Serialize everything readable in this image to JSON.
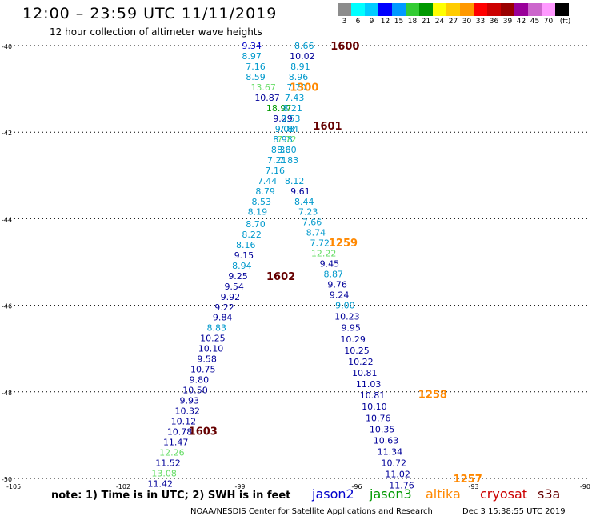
{
  "title": "12:00 – 23:59 UTC 11/11/2019",
  "subtitle": "12 hour collection of altimeter wave heights",
  "legend": {
    "colors": [
      "#8c8c8c",
      "#00ffff",
      "#00ccff",
      "#0000ff",
      "#0099ff",
      "#33cc33",
      "#009900",
      "#ffff00",
      "#ffcc00",
      "#ff9900",
      "#ff0000",
      "#cc0000",
      "#990000",
      "#990099",
      "#cc66cc",
      "#ff99ff",
      "#000000"
    ],
    "labels": [
      "3",
      "6",
      "9",
      "12",
      "15",
      "18",
      "21",
      "24",
      "27",
      "30",
      "33",
      "36",
      "39",
      "42",
      "45",
      "70",
      "(ft)"
    ]
  },
  "note": "note: 1) Time is in UTC; 2) SWH is in feet",
  "satellites": [
    {
      "name": "jason2",
      "color": "#0000cc"
    },
    {
      "name": "jason3",
      "color": "#009900"
    },
    {
      "name": "altika",
      "color": "#ff8800"
    },
    {
      "name": "cryosat",
      "color": "#cc0000"
    },
    {
      "name": "s3a",
      "color": "#660000"
    }
  ],
  "credit": "NOAA/NESDIS Center for Satellite Applications and Research",
  "timestamp": "Dec  3 15:38:55 UTC 2019",
  "chart_data": {
    "type": "scatter",
    "lon_ticks": [
      "-105",
      "-102",
      "-99",
      "-96",
      "-93",
      "-90"
    ],
    "lat_ticks": [
      "-40",
      "-42",
      "-44",
      "-46",
      "-48",
      "-50"
    ],
    "grid": true,
    "xlim": [
      -105,
      -90
    ],
    "ylim": [
      -50,
      -40
    ],
    "tracks": [
      {
        "points": [
          {
            "lon": -98.7,
            "lat": -40.0,
            "v": "9.34",
            "c": "#0000cc"
          },
          {
            "lon": -98.7,
            "lat": -40.24,
            "v": "8.97",
            "c": "#0099cc"
          },
          {
            "lon": -98.6,
            "lat": -40.48,
            "v": "7.16",
            "c": "#0099cc"
          },
          {
            "lon": -98.6,
            "lat": -40.72,
            "v": "8.59",
            "c": "#0099cc"
          },
          {
            "lon": -98.4,
            "lat": -40.96,
            "v": "13.67",
            "c": "#66dd66"
          },
          {
            "lon": -98.3,
            "lat": -41.2,
            "v": "10.87",
            "c": "#000099"
          },
          {
            "lon": -98.0,
            "lat": -41.44,
            "v": "18.97",
            "c": "#009900"
          },
          {
            "lon": -97.9,
            "lat": -41.68,
            "v": "9.29",
            "c": "#000099"
          },
          {
            "lon": -97.85,
            "lat": -41.92,
            "v": "9.08",
            "c": "#0099cc"
          },
          {
            "lon": -97.9,
            "lat": -42.16,
            "v": "8.98",
            "c": "#0099cc"
          },
          {
            "lon": -97.95,
            "lat": -42.4,
            "v": "8.36",
            "c": "#0099cc"
          },
          {
            "lon": -98.05,
            "lat": -42.64,
            "v": "7.21",
            "c": "#0099cc"
          },
          {
            "lon": -98.1,
            "lat": -42.88,
            "v": "7.16",
            "c": "#0099cc"
          },
          {
            "lon": -98.3,
            "lat": -43.12,
            "v": "7.44",
            "c": "#0099cc"
          },
          {
            "lon": -98.35,
            "lat": -43.36,
            "v": "8.79",
            "c": "#0099cc"
          },
          {
            "lon": -98.45,
            "lat": -43.6,
            "v": "8.53",
            "c": "#0099cc"
          },
          {
            "lon": -98.55,
            "lat": -43.84,
            "v": "8.19",
            "c": "#0099cc"
          },
          {
            "lon": -98.6,
            "lat": -44.12,
            "v": "8.70",
            "c": "#0099cc"
          },
          {
            "lon": -98.7,
            "lat": -44.36,
            "v": "8.22",
            "c": "#0099cc"
          },
          {
            "lon": -98.85,
            "lat": -44.6,
            "v": "8.16",
            "c": "#0099cc"
          },
          {
            "lon": -98.9,
            "lat": -44.84,
            "v": "9.15",
            "c": "#000099"
          },
          {
            "lon": -98.95,
            "lat": -45.08,
            "v": "8.94",
            "c": "#0099cc"
          },
          {
            "lon": -99.05,
            "lat": -45.32,
            "v": "9.25",
            "c": "#000099"
          },
          {
            "lon": -99.15,
            "lat": -45.56,
            "v": "9.54",
            "c": "#000099"
          },
          {
            "lon": -99.25,
            "lat": -45.8,
            "v": "9.92",
            "c": "#000099"
          },
          {
            "lon": -99.4,
            "lat": -46.04,
            "v": "9.22",
            "c": "#000099"
          },
          {
            "lon": -99.45,
            "lat": -46.28,
            "v": "9.84",
            "c": "#000099"
          },
          {
            "lon": -99.6,
            "lat": -46.52,
            "v": "8.83",
            "c": "#0099cc"
          },
          {
            "lon": -99.7,
            "lat": -46.76,
            "v": "10.25",
            "c": "#000099"
          },
          {
            "lon": -99.75,
            "lat": -47.0,
            "v": "10.10",
            "c": "#000099"
          },
          {
            "lon": -99.85,
            "lat": -47.24,
            "v": "9.58",
            "c": "#000099"
          },
          {
            "lon": -99.95,
            "lat": -47.48,
            "v": "10.75",
            "c": "#000099"
          },
          {
            "lon": -100.05,
            "lat": -47.72,
            "v": "9.80",
            "c": "#000099"
          },
          {
            "lon": -100.15,
            "lat": -47.96,
            "v": "10.50",
            "c": "#000099"
          },
          {
            "lon": -100.3,
            "lat": -48.2,
            "v": "9.93",
            "c": "#000099"
          },
          {
            "lon": -100.35,
            "lat": -48.44,
            "v": "10.32",
            "c": "#000099"
          },
          {
            "lon": -100.45,
            "lat": -48.68,
            "v": "10.12",
            "c": "#000099"
          },
          {
            "lon": -100.55,
            "lat": -48.92,
            "v": "10.78",
            "c": "#000099"
          },
          {
            "lon": -100.65,
            "lat": -49.16,
            "v": "11.47",
            "c": "#000099"
          },
          {
            "lon": -100.75,
            "lat": -49.4,
            "v": "12.26",
            "c": "#66dd66"
          },
          {
            "lon": -100.85,
            "lat": -49.64,
            "v": "11.52",
            "c": "#000099"
          },
          {
            "lon": -100.95,
            "lat": -49.88,
            "v": "13.08",
            "c": "#66dd66"
          },
          {
            "lon": -101.05,
            "lat": -50.12,
            "v": "11.42",
            "c": "#000099"
          }
        ]
      },
      {
        "points": [
          {
            "lon": -97.35,
            "lat": -40.0,
            "v": "8.66",
            "c": "#0099cc"
          },
          {
            "lon": -97.4,
            "lat": -40.24,
            "v": "10.02",
            "c": "#000099"
          },
          {
            "lon": -97.45,
            "lat": -40.48,
            "v": "8.91",
            "c": "#0099cc"
          },
          {
            "lon": -97.5,
            "lat": -40.72,
            "v": "8.96",
            "c": "#0099cc"
          },
          {
            "lon": -97.55,
            "lat": -40.96,
            "v": "7.70",
            "c": "#0099cc"
          },
          {
            "lon": -97.6,
            "lat": -41.2,
            "v": "7.43",
            "c": "#0099cc"
          },
          {
            "lon": -97.65,
            "lat": -41.44,
            "v": "8.21",
            "c": "#0099cc"
          },
          {
            "lon": -97.7,
            "lat": -41.68,
            "v": "8.53",
            "c": "#0099cc"
          },
          {
            "lon": -97.75,
            "lat": -41.92,
            "v": "7.84",
            "c": "#0099cc"
          },
          {
            "lon": -97.8,
            "lat": -42.16,
            "v": "7.72",
            "c": "#66dd66"
          },
          {
            "lon": -97.8,
            "lat": -42.4,
            "v": "8.00",
            "c": "#0099cc"
          },
          {
            "lon": -97.75,
            "lat": -42.64,
            "v": "7.83",
            "c": "#0099cc"
          },
          {
            "lon": -97.6,
            "lat": -43.12,
            "v": "8.12",
            "c": "#0099cc"
          },
          {
            "lon": -97.45,
            "lat": -43.36,
            "v": "9.61",
            "c": "#000099"
          },
          {
            "lon": -97.35,
            "lat": -43.6,
            "v": "8.44",
            "c": "#0099cc"
          },
          {
            "lon": -97.25,
            "lat": -43.84,
            "v": "7.23",
            "c": "#0099cc"
          },
          {
            "lon": -97.15,
            "lat": -44.08,
            "v": "7.66",
            "c": "#0099cc"
          },
          {
            "lon": -97.05,
            "lat": -44.32,
            "v": "8.74",
            "c": "#0099cc"
          },
          {
            "lon": -96.95,
            "lat": -44.56,
            "v": "7.72",
            "c": "#0099cc"
          },
          {
            "lon": -96.85,
            "lat": -44.8,
            "v": "12.22",
            "c": "#66dd66"
          },
          {
            "lon": -96.7,
            "lat": -45.04,
            "v": "9.45",
            "c": "#000099"
          },
          {
            "lon": -96.6,
            "lat": -45.28,
            "v": "8.87",
            "c": "#0099cc"
          },
          {
            "lon": -96.5,
            "lat": -45.52,
            "v": "9.76",
            "c": "#000099"
          },
          {
            "lon": -96.45,
            "lat": -45.76,
            "v": "9.24",
            "c": "#000099"
          },
          {
            "lon": -96.3,
            "lat": -46.0,
            "v": "9.00",
            "c": "#0099cc"
          },
          {
            "lon": -96.25,
            "lat": -46.26,
            "v": "10.23",
            "c": "#000099"
          },
          {
            "lon": -96.15,
            "lat": -46.52,
            "v": "9.95",
            "c": "#000099"
          },
          {
            "lon": -96.1,
            "lat": -46.78,
            "v": "10.29",
            "c": "#000099"
          },
          {
            "lon": -96.0,
            "lat": -47.04,
            "v": "10.25",
            "c": "#000099"
          },
          {
            "lon": -95.9,
            "lat": -47.3,
            "v": "10.22",
            "c": "#000099"
          },
          {
            "lon": -95.8,
            "lat": -47.56,
            "v": "10.81",
            "c": "#000099"
          },
          {
            "lon": -95.7,
            "lat": -47.82,
            "v": "11.03",
            "c": "#000099"
          },
          {
            "lon": -95.6,
            "lat": -48.08,
            "v": "10.81",
            "c": "#000099"
          },
          {
            "lon": -95.55,
            "lat": -48.34,
            "v": "10.10",
            "c": "#000099"
          },
          {
            "lon": -95.45,
            "lat": -48.6,
            "v": "10.76",
            "c": "#000099"
          },
          {
            "lon": -95.35,
            "lat": -48.86,
            "v": "10.35",
            "c": "#000099"
          },
          {
            "lon": -95.25,
            "lat": -49.12,
            "v": "10.63",
            "c": "#000099"
          },
          {
            "lon": -95.15,
            "lat": -49.38,
            "v": "11.34",
            "c": "#000099"
          },
          {
            "lon": -95.05,
            "lat": -49.64,
            "v": "10.72",
            "c": "#000099"
          },
          {
            "lon": -94.95,
            "lat": -49.9,
            "v": "11.02",
            "c": "#000099"
          },
          {
            "lon": -94.85,
            "lat": -50.16,
            "v": "11.76",
            "c": "#000099"
          }
        ]
      }
    ],
    "time_labels": [
      {
        "lon": -96.3,
        "lat": -40.0,
        "t": "1600",
        "c": "#660000"
      },
      {
        "lon": -97.35,
        "lat": -40.95,
        "t": "1300",
        "c": "#ff8800"
      },
      {
        "lon": -96.75,
        "lat": -41.85,
        "t": "1601",
        "c": "#660000"
      },
      {
        "lon": -96.35,
        "lat": -44.55,
        "t": "1259",
        "c": "#ff8800"
      },
      {
        "lon": -97.95,
        "lat": -45.32,
        "t": "1602",
        "c": "#660000"
      },
      {
        "lon": -94.05,
        "lat": -48.05,
        "t": "1258",
        "c": "#ff8800"
      },
      {
        "lon": -99.95,
        "lat": -48.9,
        "t": "1603",
        "c": "#660000"
      },
      {
        "lon": -93.15,
        "lat": -50.0,
        "t": "1257",
        "c": "#ff8800"
      }
    ]
  }
}
